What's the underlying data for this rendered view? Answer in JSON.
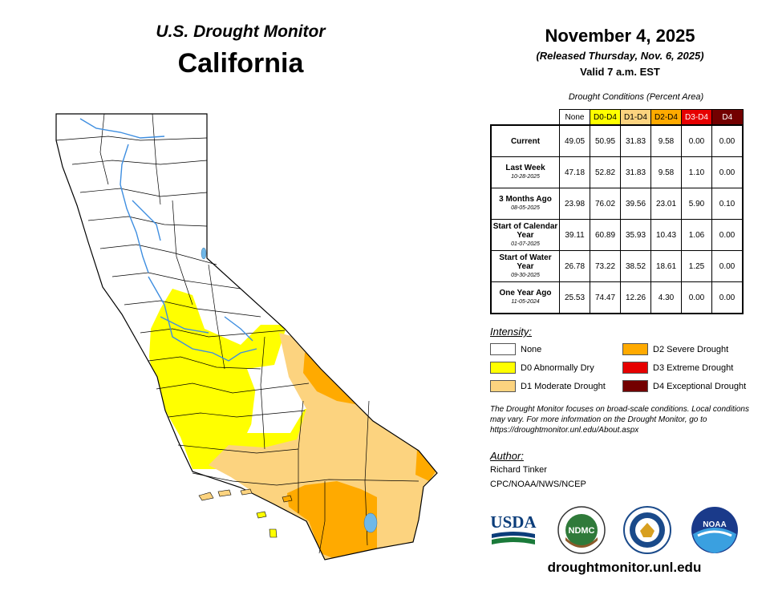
{
  "header": {
    "subtitle": "U.S. Drought Monitor",
    "title": "California",
    "date": "November 4, 2025",
    "released": "(Released Thursday, Nov. 6, 2025)",
    "valid": "Valid 7 a.m. EST"
  },
  "table": {
    "caption": "Drought Conditions (Percent Area)",
    "columns": [
      {
        "label": "None",
        "color": "#ffffff",
        "text_color": "#000000"
      },
      {
        "label": "D0-D4",
        "color": "#ffff00",
        "text_color": "#000000"
      },
      {
        "label": "D1-D4",
        "color": "#fcd37f",
        "text_color": "#000000"
      },
      {
        "label": "D2-D4",
        "color": "#ffaa00",
        "text_color": "#000000"
      },
      {
        "label": "D3-D4",
        "color": "#e60000",
        "text_color": "#ffffff"
      },
      {
        "label": "D4",
        "color": "#730000",
        "text_color": "#ffffff"
      }
    ],
    "rows": [
      {
        "label": "Current",
        "date": "",
        "values": [
          "49.05",
          "50.95",
          "31.83",
          "9.58",
          "0.00",
          "0.00"
        ]
      },
      {
        "label": "Last Week",
        "date": "10-28-2025",
        "values": [
          "47.18",
          "52.82",
          "31.83",
          "9.58",
          "1.10",
          "0.00"
        ]
      },
      {
        "label": "3 Months Ago",
        "date": "08-05-2025",
        "values": [
          "23.98",
          "76.02",
          "39.56",
          "23.01",
          "5.90",
          "0.10"
        ]
      },
      {
        "label": "Start of Calendar Year",
        "date": "01-07-2025",
        "values": [
          "39.11",
          "60.89",
          "35.93",
          "10.43",
          "1.06",
          "0.00"
        ]
      },
      {
        "label": "Start of Water Year",
        "date": "09-30-2025",
        "values": [
          "26.78",
          "73.22",
          "38.52",
          "18.61",
          "1.25",
          "0.00"
        ]
      },
      {
        "label": "One Year Ago",
        "date": "11-05-2024",
        "values": [
          "25.53",
          "74.47",
          "12.26",
          "4.30",
          "0.00",
          "0.00"
        ]
      }
    ]
  },
  "legend": {
    "title": "Intensity:",
    "items": [
      {
        "label": "None",
        "color": "#ffffff"
      },
      {
        "label": "D0 Abnormally Dry",
        "color": "#ffff00"
      },
      {
        "label": "D1 Moderate Drought",
        "color": "#fcd37f"
      },
      {
        "label": "D2 Severe Drought",
        "color": "#ffaa00"
      },
      {
        "label": "D3 Extreme Drought",
        "color": "#e60000"
      },
      {
        "label": "D4 Exceptional Drought",
        "color": "#730000"
      }
    ]
  },
  "note": "The Drought Monitor focuses on broad-scale conditions. Local conditions may vary. For more information on the Drought Monitor, go to https://droughtmonitor.unl.edu/About.aspx",
  "author": {
    "title": "Author:",
    "name": "Richard Tinker",
    "org": "CPC/NOAA/NWS/NCEP"
  },
  "logos": {
    "usda": "USDA",
    "ndmc": "NDMC",
    "noaa": "NOAA"
  },
  "footer_url": "droughtmonitor.unl.edu",
  "map": {
    "region": "California",
    "colors": {
      "none": "#ffffff",
      "d0": "#ffff00",
      "d1": "#fcd37f",
      "d2": "#ffaa00",
      "water": "#6fb8e8",
      "river": "#3e8ee0",
      "border": "#000000"
    }
  }
}
